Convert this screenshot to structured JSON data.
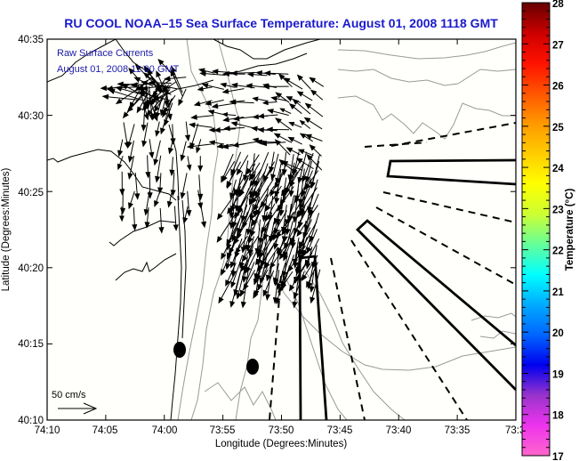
{
  "title": "RU COOL  NOAA–15  Sea Surface Temperature:  August 01, 2008 1118 GMT",
  "annotations": {
    "line1": "Raw Surface Currents",
    "line2": "August 01, 2008 11:00 GMT"
  },
  "scale_arrow": {
    "label": "50 cm/s",
    "speed_cm_s": 50
  },
  "colors": {
    "title": "#1a1acc",
    "annotation": "#1a1aaa",
    "contour_gray": "#999999",
    "coast": "#000000",
    "vectors": "#000000",
    "plot_bg": "#fffffb"
  },
  "chart_data": {
    "type": "map",
    "title": "RU COOL  NOAA–15  Sea Surface Temperature:  August 01, 2008 1118 GMT",
    "xlabel": "Longitude (Degrees:Minutes)",
    "ylabel": "Latitude (Degrees:Minutes)",
    "x_ticks": [
      "74:10",
      "74:05",
      "74:00",
      "73:55",
      "73:50",
      "73:45",
      "73:40",
      "73:35",
      "73:3"
    ],
    "y_ticks": [
      "40:35",
      "40:30",
      "40:25",
      "40:20",
      "40:15",
      "40:10"
    ],
    "xlim_minutes_west": [
      70,
      30
    ],
    "ylim_minutes_north": [
      10,
      35
    ],
    "colorbar": {
      "label": "Temperature (°C)",
      "min": 17,
      "max": 28,
      "ticks": [
        "28",
        "27",
        "26",
        "25",
        "24",
        "23",
        "22",
        "21",
        "20",
        "19",
        "18",
        "17"
      ],
      "colormap": [
        "#ff66cc",
        "#ee33ee",
        "#9933cc",
        "#0000ee",
        "#0066ff",
        "#00aaff",
        "#00ffff",
        "#66ff99",
        "#ccff33",
        "#ffff00",
        "#ffcc00",
        "#ff9900",
        "#ff5500",
        "#ff1100",
        "#cc0000",
        "#660000"
      ]
    },
    "vector_fields": [
      {
        "name": "harbor-cluster",
        "center": [
          40.528,
          -74.005
        ],
        "count": 60,
        "dir_deg": 200,
        "speed": 40,
        "spread_deg": 180
      },
      {
        "name": "northern-westward",
        "lat_range": [
          40.47,
          40.545
        ],
        "lon_range": [
          -73.93,
          -73.82
        ],
        "dir_deg": 180,
        "speed": 28,
        "spacing_min": 0.9
      },
      {
        "name": "eastern-northwest",
        "lat_range": [
          40.44,
          40.53
        ],
        "lon_range": [
          -73.82,
          -73.76
        ],
        "dir_deg": 145,
        "speed": 25,
        "spacing_min": 0.9
      },
      {
        "name": "central-southward",
        "lat_range": [
          40.33,
          40.46
        ],
        "lon_range": [
          -73.9,
          -73.78
        ],
        "dir_deg": 250,
        "speed": 42,
        "spacing_min": 0.55
      },
      {
        "name": "nearshore-south",
        "lat_range": [
          40.4,
          40.5
        ],
        "lon_range": [
          -74.06,
          -73.94
        ],
        "dir_deg": 265,
        "speed": 30,
        "spacing_min": 1.1
      }
    ],
    "markers": [
      {
        "name": "buoy-1",
        "lat": 40.245,
        "lon": -73.978
      },
      {
        "name": "buoy-2",
        "lat": 40.225,
        "lon": -73.873
      }
    ]
  }
}
